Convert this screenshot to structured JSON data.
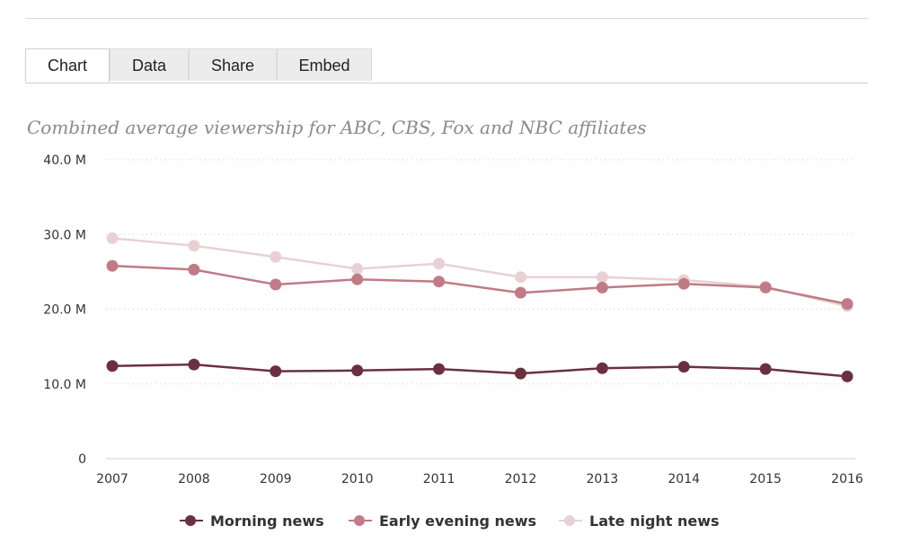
{
  "tabs": [
    {
      "label": "Chart",
      "active": true
    },
    {
      "label": "Data",
      "active": false
    },
    {
      "label": "Share",
      "active": false
    },
    {
      "label": "Embed",
      "active": false
    }
  ],
  "chart_data": {
    "type": "line",
    "title": "",
    "subtitle": "Combined average viewership for ABC, CBS, Fox and NBC affiliates",
    "xlabel": "",
    "ylabel": "",
    "x": [
      "2007",
      "2008",
      "2009",
      "2010",
      "2011",
      "2012",
      "2013",
      "2014",
      "2015",
      "2016"
    ],
    "y_ticks": [
      {
        "value": 0,
        "label": "0"
      },
      {
        "value": 10,
        "label": "10.0 M"
      },
      {
        "value": 20,
        "label": "20.0 M"
      },
      {
        "value": 30,
        "label": "30.0 M"
      },
      {
        "value": 40,
        "label": "40.0 M"
      }
    ],
    "ylim": [
      0,
      40
    ],
    "grid": true,
    "legend_position": "bottom-center",
    "series": [
      {
        "name": "Morning news",
        "color": "#6b3040",
        "values": [
          12.4,
          12.6,
          11.7,
          11.8,
          12.0,
          11.4,
          12.1,
          12.3,
          12.0,
          11.0
        ]
      },
      {
        "name": "Early evening news",
        "color": "#c07b87",
        "values": [
          25.8,
          25.3,
          23.3,
          24.0,
          23.7,
          22.2,
          22.9,
          23.4,
          22.9,
          20.7
        ]
      },
      {
        "name": "Late night news",
        "color": "#e8d1d5",
        "values": [
          29.5,
          28.5,
          27.0,
          25.4,
          26.1,
          24.3,
          24.3,
          23.9,
          23.0,
          20.4
        ]
      }
    ]
  }
}
